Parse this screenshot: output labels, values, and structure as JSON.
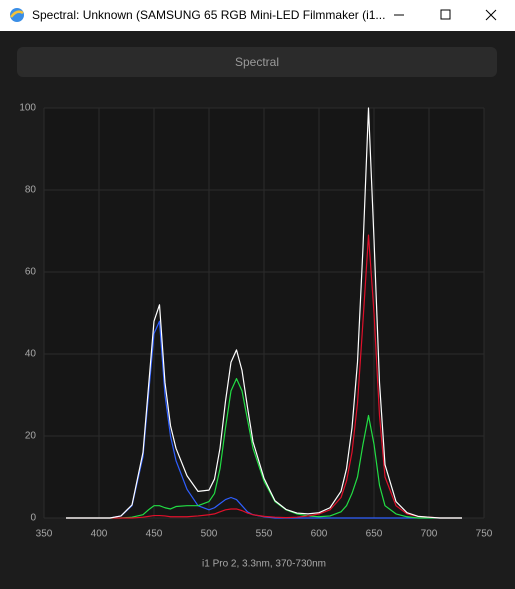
{
  "window": {
    "title": "Spectral: Unknown (SAMSUNG 65 RGB Mini-LED Filmmaker (i1..."
  },
  "button": "Spectral",
  "chart_data": {
    "type": "line",
    "xlabel": "i1 Pro 2, 3.3nm, 370-730nm",
    "x": [
      370,
      400,
      410,
      420,
      430,
      440,
      445,
      450,
      455,
      460,
      465,
      470,
      480,
      490,
      500,
      505,
      510,
      515,
      520,
      525,
      530,
      535,
      540,
      550,
      560,
      570,
      580,
      590,
      600,
      610,
      620,
      625,
      630,
      635,
      640,
      645,
      650,
      655,
      660,
      670,
      680,
      690,
      700,
      710,
      730
    ],
    "series": [
      {
        "color": "#ffffff",
        "values": [
          0,
          0,
          0,
          0.5,
          3.2,
          16,
          32,
          48,
          52,
          33,
          22.5,
          17,
          10.3,
          6.5,
          6.8,
          9.5,
          17,
          28.5,
          38,
          41,
          36,
          27,
          18.6,
          9.7,
          4.2,
          2.1,
          1.2,
          1,
          1.3,
          2.5,
          6.5,
          12,
          22,
          38,
          66,
          100,
          68,
          33,
          13,
          4,
          1.3,
          0.4,
          0.2,
          0,
          0
        ]
      },
      {
        "color": "#e0102a",
        "values": [
          0,
          0,
          0,
          0,
          0,
          0.2,
          0.4,
          0.6,
          0.6,
          0.5,
          0.3,
          0.3,
          0.3,
          0.5,
          0.8,
          1,
          1.5,
          2,
          2.2,
          2.2,
          1.8,
          1.2,
          0.8,
          0.4,
          0.2,
          0.1,
          0.2,
          0.5,
          1,
          2,
          5,
          9,
          16,
          28,
          48,
          69,
          50,
          25,
          10,
          3,
          1,
          0.4,
          0.2,
          0,
          0
        ]
      },
      {
        "color": "#22dd44",
        "values": [
          0,
          0,
          0,
          0,
          0.2,
          0.8,
          2,
          3,
          3,
          2.5,
          2.2,
          2.8,
          3,
          3,
          4,
          6,
          12,
          22,
          31,
          34,
          31,
          24,
          17,
          9,
          4,
          2,
          1,
          0.5,
          0.3,
          0.5,
          1.5,
          3,
          6,
          10,
          18,
          25,
          18,
          8,
          3,
          1,
          0.3,
          0,
          0,
          0,
          0
        ]
      },
      {
        "color": "#2f5fff",
        "values": [
          0,
          0,
          0,
          0.5,
          3,
          15,
          30,
          45,
          48,
          30,
          20,
          14,
          7,
          3,
          2,
          2.5,
          3.5,
          4.5,
          5,
          4.5,
          3,
          1.5,
          0.8,
          0.3,
          0,
          0,
          0,
          0,
          0,
          0,
          0,
          0,
          0,
          0,
          0,
          0,
          0,
          0,
          0,
          0,
          0,
          0,
          0,
          0,
          0
        ]
      }
    ],
    "xlim": [
      350,
      750
    ],
    "xticks": [
      350,
      400,
      450,
      500,
      550,
      600,
      650,
      700,
      750
    ],
    "ylim": [
      0,
      100
    ],
    "yticks": [
      0,
      20,
      40,
      60,
      80,
      100
    ],
    "grid": true
  }
}
